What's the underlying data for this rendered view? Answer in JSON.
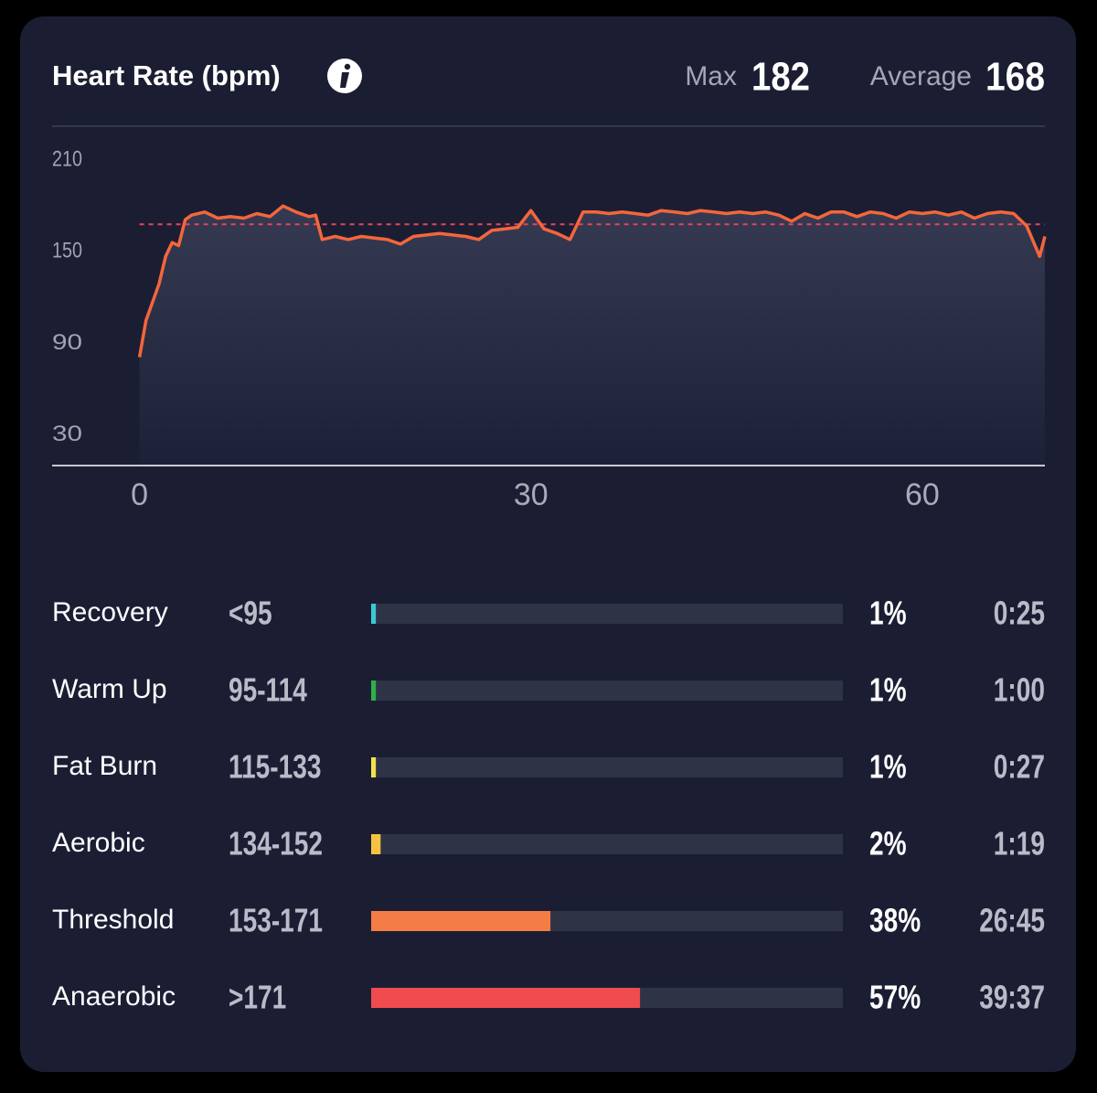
{
  "chart_data": [
    {
      "type": "line",
      "title": "Heart Rate (bpm)",
      "max": {
        "label": "Max",
        "value": 182
      },
      "average": {
        "label": "Average",
        "value": 168
      },
      "color": "#f4663c",
      "x": [
        0,
        0.5,
        1,
        1.5,
        2,
        2.5,
        3,
        3.5,
        4,
        5,
        6,
        7,
        8,
        9,
        10,
        11,
        12,
        13,
        13.5,
        14,
        15,
        16,
        17,
        18,
        19,
        20,
        21,
        22,
        23,
        24,
        25,
        26,
        27,
        28,
        29,
        30,
        31,
        32,
        33,
        34,
        35,
        36,
        37,
        38,
        39,
        40,
        41,
        42,
        43,
        44,
        45,
        46,
        47,
        48,
        49,
        50,
        51,
        52,
        53,
        54,
        55,
        56,
        57,
        58,
        59,
        60,
        61,
        62,
        63,
        64,
        65,
        66,
        67,
        68,
        69,
        69.4
      ],
      "values": [
        81,
        105,
        117,
        129,
        147,
        156,
        154,
        171,
        174,
        176,
        172,
        173,
        172,
        175,
        173,
        180,
        176,
        173,
        174,
        158,
        160,
        158,
        160,
        159,
        158,
        155,
        160,
        161,
        162,
        161,
        160,
        158,
        164,
        165,
        166,
        177,
        165,
        162,
        158,
        176,
        176,
        175,
        176,
        175,
        174,
        177,
        176,
        175,
        177,
        176,
        175,
        176,
        175,
        176,
        174,
        170,
        175,
        172,
        176,
        176,
        173,
        176,
        175,
        172,
        176,
        175,
        176,
        174,
        176,
        172,
        175,
        176,
        175,
        167,
        147,
        160
      ],
      "xlim": [
        -6.7,
        69.4
      ],
      "xticks": [
        0,
        30,
        60
      ],
      "ylim": [
        10,
        231
      ],
      "yticks": [
        30,
        90,
        150,
        210
      ]
    },
    {
      "type": "bar",
      "categories": [
        "Recovery",
        "Warm Up",
        "Fat Burn",
        "Aerobic",
        "Threshold",
        "Anaerobic"
      ],
      "ranges": [
        "<95",
        "95-114",
        "115-133",
        "134-152",
        "153-171",
        ">171"
      ],
      "values": [
        1,
        1,
        1,
        2,
        38,
        57
      ],
      "value_labels": [
        "1%",
        "1%",
        "1%",
        "2%",
        "38%",
        "57%"
      ],
      "times": [
        "0:25",
        "1:00",
        "0:27",
        "1:19",
        "26:45",
        "39:37"
      ],
      "colors": [
        "#3cc8d2",
        "#2fb04a",
        "#f2e24e",
        "#f5c242",
        "#f47c45",
        "#f04b4e"
      ],
      "xlim": [
        0,
        100
      ]
    }
  ]
}
